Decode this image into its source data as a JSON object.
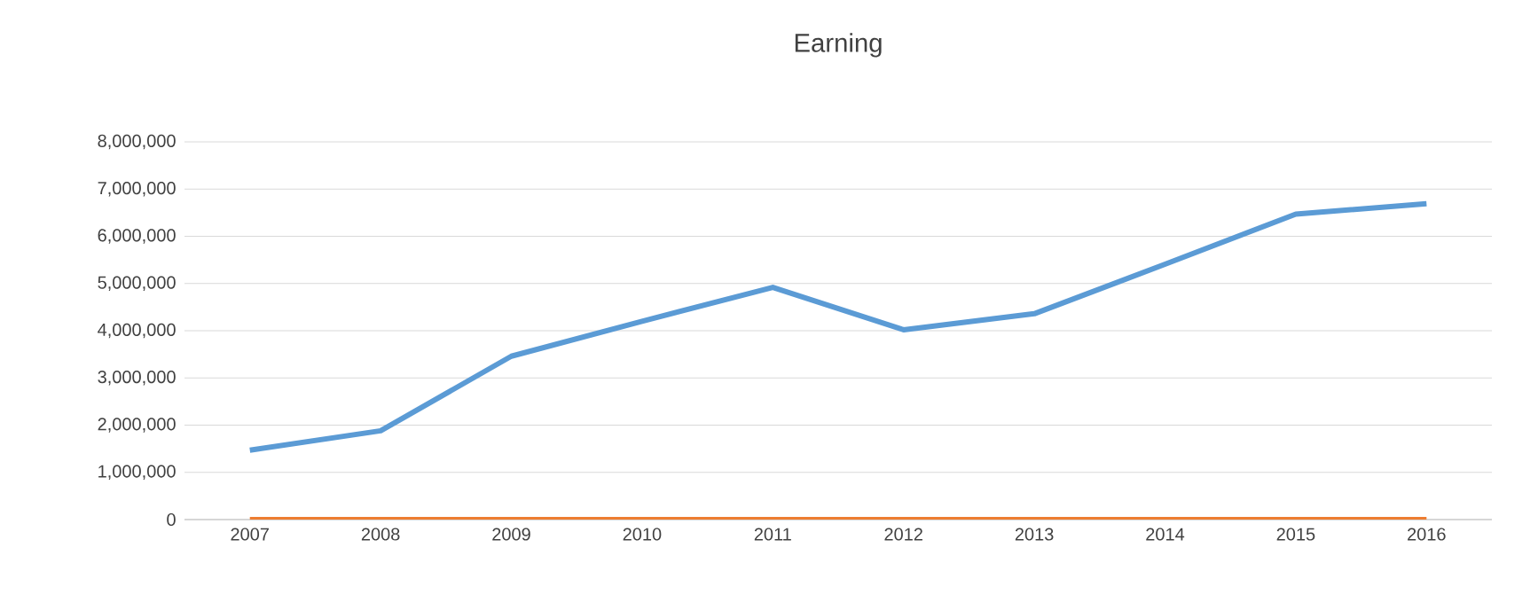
{
  "chart_data": {
    "type": "line",
    "title": "Earning",
    "categories": [
      "2007",
      "2008",
      "2009",
      "2010",
      "2011",
      "2012",
      "2013",
      "2014",
      "2015",
      "2016"
    ],
    "series": [
      {
        "color": "#5b9bd5",
        "values": [
          1470000,
          1880000,
          3460000,
          4200000,
          4920000,
          4020000,
          4360000,
          5410000,
          6470000,
          6690000
        ]
      },
      {
        "color": "#ed7d31",
        "values": [
          0,
          0,
          0,
          0,
          0,
          0,
          0,
          0,
          0,
          0
        ]
      }
    ],
    "ylim": [
      0,
      8000000
    ],
    "yticks": [
      {
        "value": 0,
        "label": "0"
      },
      {
        "value": 1000000,
        "label": "1,000,000"
      },
      {
        "value": 2000000,
        "label": "2,000,000"
      },
      {
        "value": 3000000,
        "label": "3,000,000"
      },
      {
        "value": 4000000,
        "label": "4,000,000"
      },
      {
        "value": 5000000,
        "label": "5,000,000"
      },
      {
        "value": 6000000,
        "label": "6,000,000"
      },
      {
        "value": 7000000,
        "label": "7,000,000"
      },
      {
        "value": 8000000,
        "label": "8,000,000"
      }
    ],
    "grid": "y"
  }
}
